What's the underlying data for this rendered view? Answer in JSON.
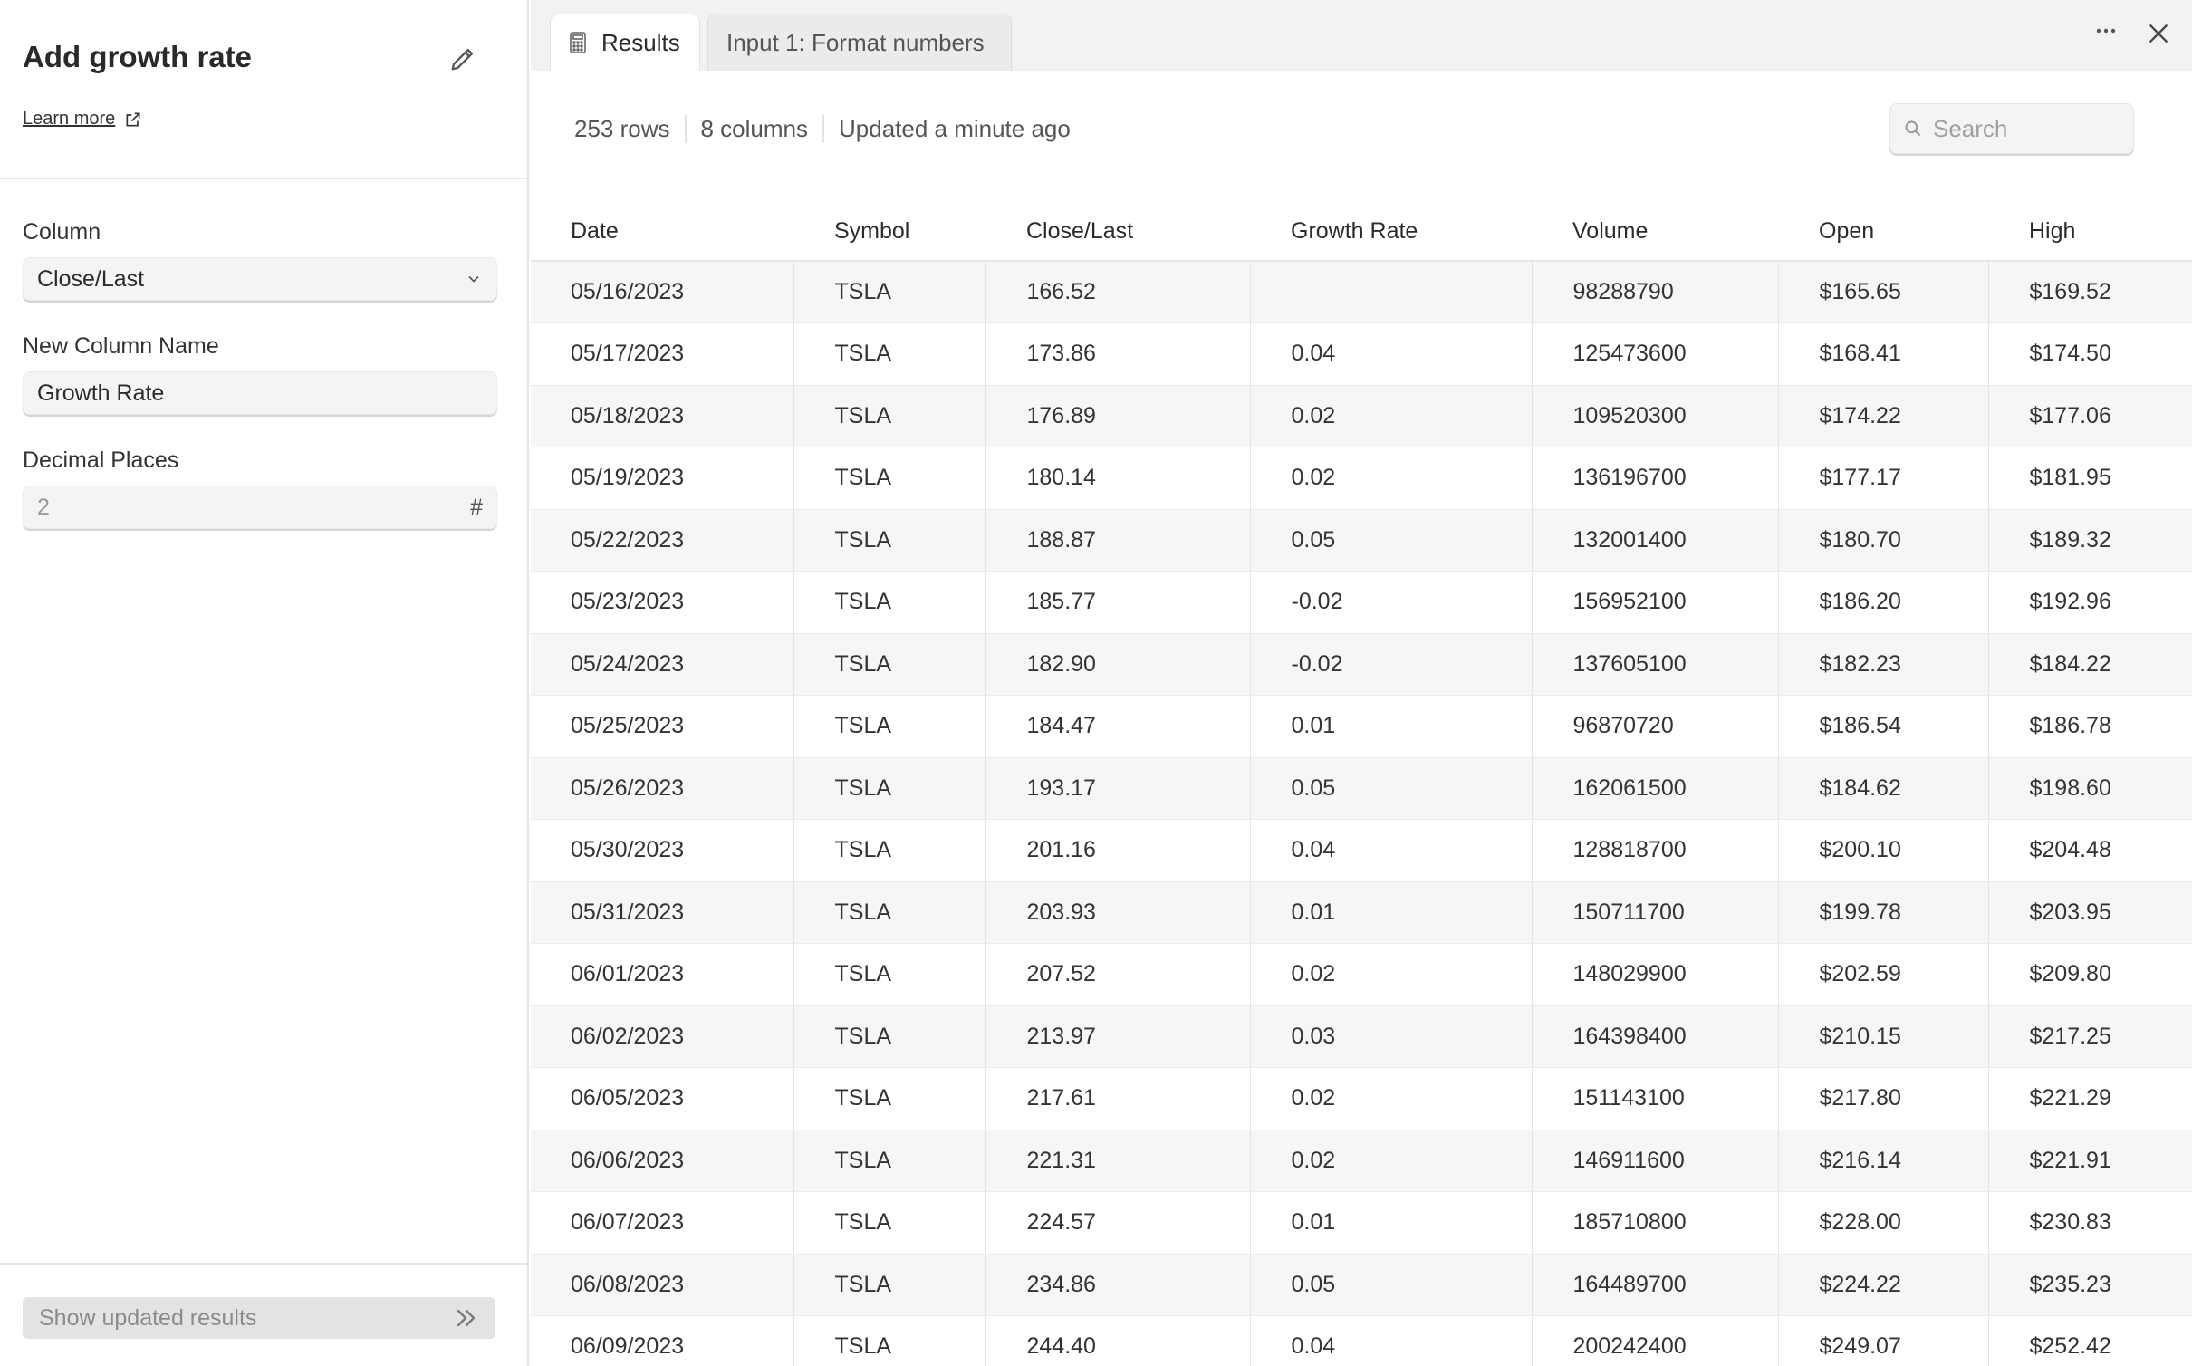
{
  "panel": {
    "title": "Add growth rate",
    "learn_more": "Learn more",
    "column_label": "Column",
    "column_value": "Close/Last",
    "new_column_label": "New Column Name",
    "new_column_value": "Growth Rate",
    "decimal_label": "Decimal Places",
    "decimal_placeholder": "2",
    "decimal_icon": "#",
    "show_results": "Show updated results"
  },
  "tabs": [
    {
      "label": "Results",
      "icon": "calculator-icon",
      "active": true
    },
    {
      "label": "Input 1: Format numbers",
      "active": false
    }
  ],
  "meta": {
    "rows": "253 rows",
    "columns": "8 columns",
    "updated": "Updated a minute ago"
  },
  "search": {
    "placeholder": "Search"
  },
  "table": {
    "headers": [
      "Date",
      "Symbol",
      "Close/Last",
      "Growth Rate",
      "Volume",
      "Open",
      "High"
    ],
    "rows": [
      [
        "05/16/2023",
        "TSLA",
        "166.52",
        "",
        "98288790",
        "$165.65",
        "$169.52"
      ],
      [
        "05/17/2023",
        "TSLA",
        "173.86",
        "0.04",
        "125473600",
        "$168.41",
        "$174.50"
      ],
      [
        "05/18/2023",
        "TSLA",
        "176.89",
        "0.02",
        "109520300",
        "$174.22",
        "$177.06"
      ],
      [
        "05/19/2023",
        "TSLA",
        "180.14",
        "0.02",
        "136196700",
        "$177.17",
        "$181.95"
      ],
      [
        "05/22/2023",
        "TSLA",
        "188.87",
        "0.05",
        "132001400",
        "$180.70",
        "$189.32"
      ],
      [
        "05/23/2023",
        "TSLA",
        "185.77",
        "-0.02",
        "156952100",
        "$186.20",
        "$192.96"
      ],
      [
        "05/24/2023",
        "TSLA",
        "182.90",
        "-0.02",
        "137605100",
        "$182.23",
        "$184.22"
      ],
      [
        "05/25/2023",
        "TSLA",
        "184.47",
        "0.01",
        "96870720",
        "$186.54",
        "$186.78"
      ],
      [
        "05/26/2023",
        "TSLA",
        "193.17",
        "0.05",
        "162061500",
        "$184.62",
        "$198.60"
      ],
      [
        "05/30/2023",
        "TSLA",
        "201.16",
        "0.04",
        "128818700",
        "$200.10",
        "$204.48"
      ],
      [
        "05/31/2023",
        "TSLA",
        "203.93",
        "0.01",
        "150711700",
        "$199.78",
        "$203.95"
      ],
      [
        "06/01/2023",
        "TSLA",
        "207.52",
        "0.02",
        "148029900",
        "$202.59",
        "$209.80"
      ],
      [
        "06/02/2023",
        "TSLA",
        "213.97",
        "0.03",
        "164398400",
        "$210.15",
        "$217.25"
      ],
      [
        "06/05/2023",
        "TSLA",
        "217.61",
        "0.02",
        "151143100",
        "$217.80",
        "$221.29"
      ],
      [
        "06/06/2023",
        "TSLA",
        "221.31",
        "0.02",
        "146911600",
        "$216.14",
        "$221.91"
      ],
      [
        "06/07/2023",
        "TSLA",
        "224.57",
        "0.01",
        "185710800",
        "$228.00",
        "$230.83"
      ],
      [
        "06/08/2023",
        "TSLA",
        "234.86",
        "0.05",
        "164489700",
        "$224.22",
        "$235.23"
      ],
      [
        "06/09/2023",
        "TSLA",
        "244.40",
        "0.04",
        "200242400",
        "$249.07",
        "$252.42"
      ]
    ]
  }
}
